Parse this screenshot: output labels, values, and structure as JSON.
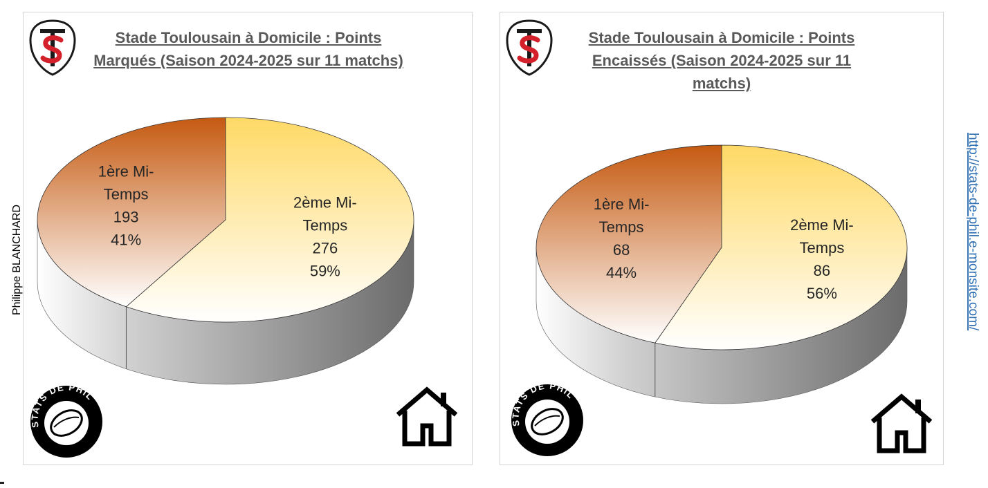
{
  "charts": {
    "left": {
      "title_line1": "Stade Toulousain à Domicile : Points",
      "title_line2": "Marqués (Saison 2024-2025 sur 11 matchs)"
    },
    "right": {
      "title_line1": "Stade Toulousain à Domicile : Points",
      "title_line2": "Encaissés (Saison 2024-2025 sur 11",
      "title_line3": "matchs)"
    }
  },
  "chart_data": [
    {
      "type": "pie",
      "title": "Stade Toulousain à Domicile : Points Marqués (Saison 2024-2025 sur 11 matchs)",
      "slices": [
        {
          "label_line1": "1ère Mi-",
          "label_line2": "Temps",
          "value": 193,
          "percent": "41%"
        },
        {
          "label_line1": "2ème Mi-",
          "label_line2": "Temps",
          "value": 276,
          "percent": "59%"
        }
      ],
      "colors": [
        "#c55a11",
        "#ffd966"
      ]
    },
    {
      "type": "pie",
      "title": "Stade Toulousain à Domicile : Points Encaissés (Saison 2024-2025 sur 11 matchs)",
      "slices": [
        {
          "label_line1": "1ère Mi-",
          "label_line2": "Temps",
          "value": 68,
          "percent": "44%"
        },
        {
          "label_line1": "2ème Mi-",
          "label_line2": "Temps",
          "value": 86,
          "percent": "56%"
        }
      ],
      "colors": [
        "#c55a11",
        "#ffd966"
      ]
    }
  ],
  "author": "Philippe BLANCHARD",
  "url": "http://stats-de-phil.e-monsite.com/",
  "icons": {
    "club_logo": "stade-toulousain-logo",
    "brand_badge": "stats-de-phil-badge",
    "home": "home-icon"
  },
  "badge_text": "STATS DE PHIL"
}
